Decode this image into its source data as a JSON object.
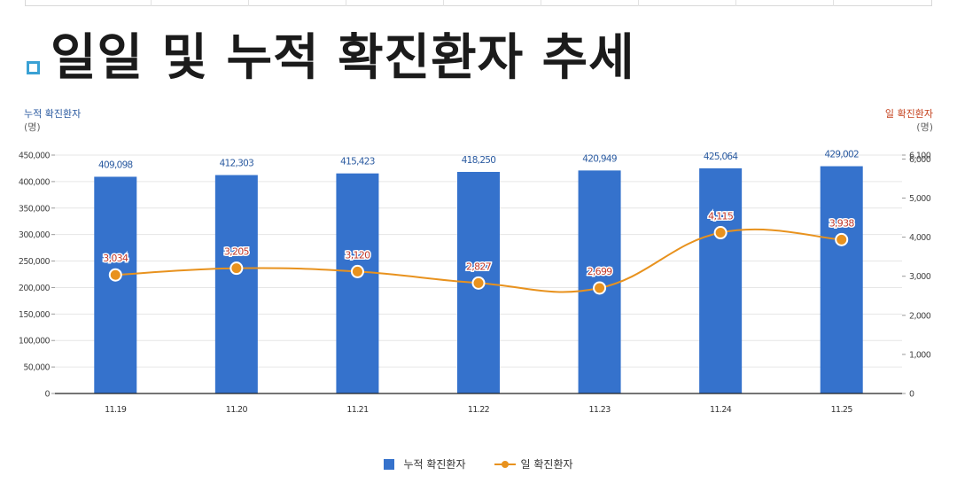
{
  "page": {
    "title": "일일 및 누적 확진환자 추세"
  },
  "chart_data": {
    "type": "bar",
    "categories": [
      "11.19",
      "11.20",
      "11.21",
      "11.22",
      "11.23",
      "11.24",
      "11.25"
    ],
    "series": [
      {
        "name": "누적 확진환자",
        "type": "bar",
        "axis": "left",
        "values": [
          409098,
          412303,
          415423,
          418250,
          420949,
          425064,
          429002
        ],
        "labels": [
          "409,098",
          "412,303",
          "415,423",
          "418,250",
          "420,949",
          "425,064",
          "429,002"
        ],
        "color": "#3572cc"
      },
      {
        "name": "일 확진환자",
        "type": "line",
        "axis": "right",
        "values": [
          3034,
          3205,
          3120,
          2827,
          2699,
          4115,
          3938
        ],
        "labels": [
          "3,034",
          "3,205",
          "3,120",
          "2,827",
          "2,699",
          "4,115",
          "3,938"
        ],
        "color": "#e8921e"
      }
    ],
    "y_left": {
      "title": "누적 확진환자",
      "unit": "(명)",
      "ylim": [
        0,
        450000
      ],
      "ticks": [
        0,
        50000,
        100000,
        150000,
        200000,
        250000,
        300000,
        350000,
        400000,
        450000
      ],
      "tick_labels": [
        "0",
        "50,000",
        "100,000",
        "150,000",
        "200,000",
        "250,000",
        "300,000",
        "350,000",
        "400,000",
        "450,000"
      ]
    },
    "y_right": {
      "title": "일 확진환자",
      "unit": "(명)",
      "ylim": [
        0,
        6100
      ],
      "ticks": [
        0,
        1000,
        2000,
        3000,
        4000,
        5000,
        6000,
        6100
      ],
      "tick_labels": [
        "0",
        "1,000",
        "2,000",
        "3,000",
        "4,000",
        "5,000",
        "6,000",
        "6,100"
      ]
    },
    "grid": true,
    "legend": "bottom-center"
  }
}
